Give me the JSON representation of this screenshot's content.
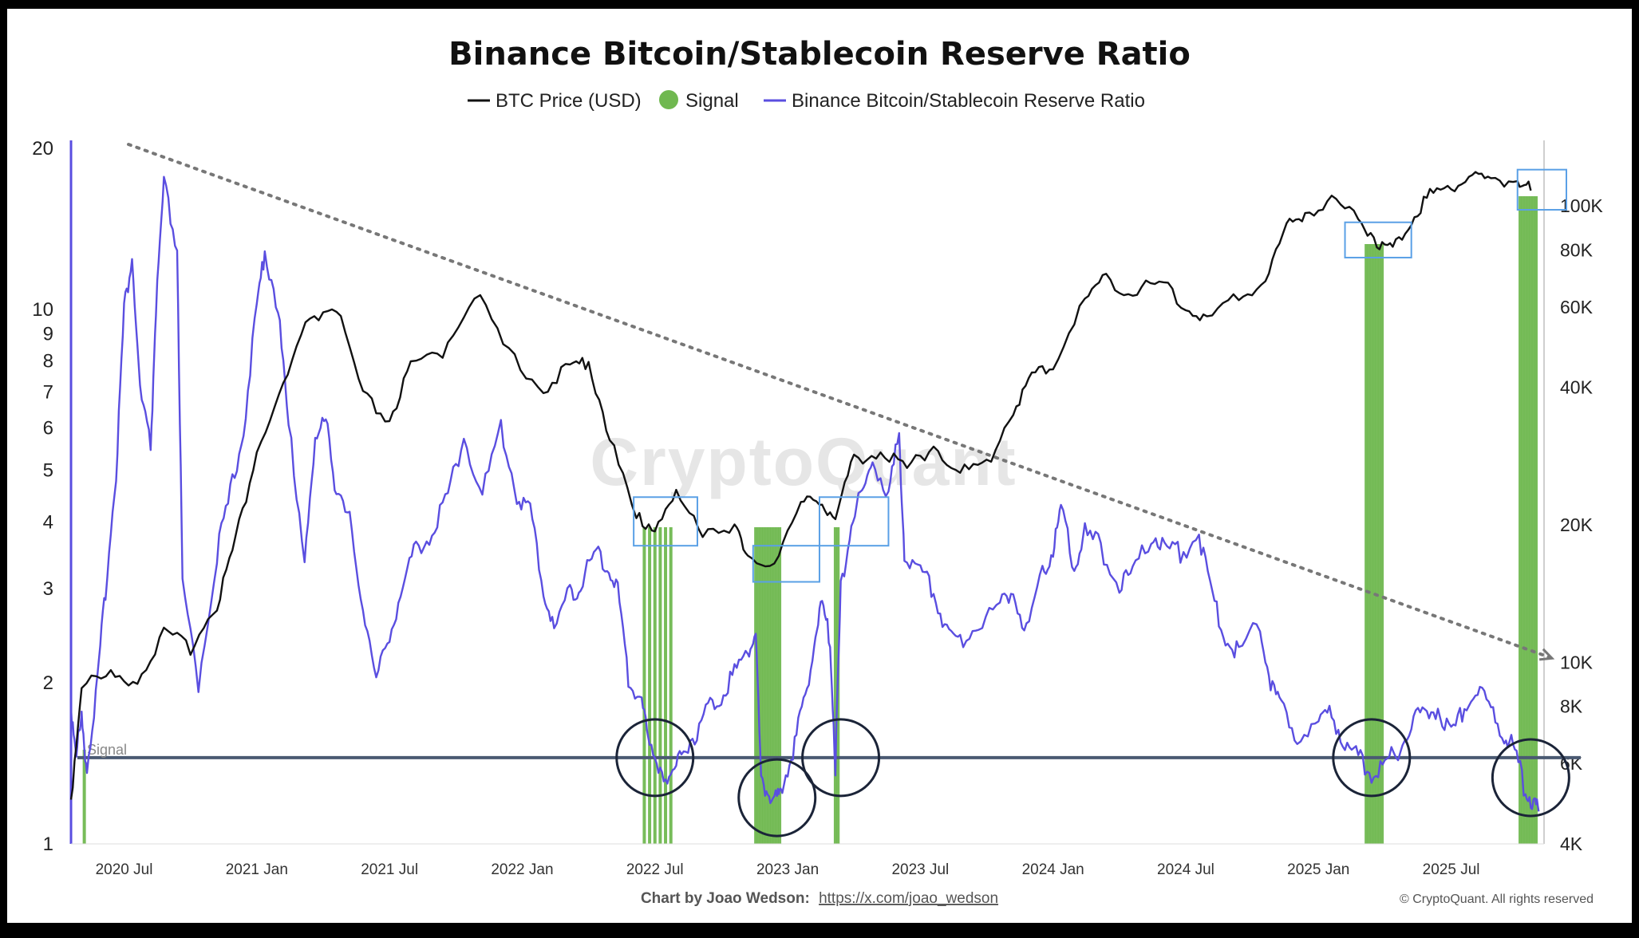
{
  "chart_data": {
    "type": "line",
    "title": "Binance Bitcoin/Stablecoin Reserve Ratio",
    "legend": [
      {
        "label": "BTC Price (USD)",
        "color": "#111111",
        "marker": "line"
      },
      {
        "label": "Signal",
        "color": "#70b850",
        "marker": "circle"
      },
      {
        "label": "Binance Bitcoin/Stablecoin Reserve Ratio",
        "color": "#5a4ee0",
        "marker": "line"
      }
    ],
    "x_axis": {
      "start": 2020.3,
      "end": 2025.85,
      "ticks": [
        {
          "label": "2020 Jul",
          "value": 2020.5
        },
        {
          "label": "2021 Jan",
          "value": 2021.0
        },
        {
          "label": "2021 Jul",
          "value": 2021.5
        },
        {
          "label": "2022 Jan",
          "value": 2022.0
        },
        {
          "label": "2022 Jul",
          "value": 2022.5
        },
        {
          "label": "2023 Jan",
          "value": 2023.0
        },
        {
          "label": "2023 Jul",
          "value": 2023.5
        },
        {
          "label": "2024 Jan",
          "value": 2024.0
        },
        {
          "label": "2024 Jul",
          "value": 2024.5
        },
        {
          "label": "2025 Jan",
          "value": 2025.0
        },
        {
          "label": "2025 Jul",
          "value": 2025.5
        }
      ]
    },
    "y_left": {
      "scale": "log",
      "min": 1,
      "max": 20,
      "ticks": [
        "20",
        "10",
        "9",
        "8",
        "7",
        "6",
        "5",
        "4",
        "3",
        "2",
        "1"
      ],
      "tick_values": [
        20,
        10,
        9,
        8,
        7,
        6,
        5,
        4,
        3,
        2,
        1
      ]
    },
    "y_right": {
      "scale": "log",
      "min": 4000,
      "max": 140000,
      "ticks": [
        "100K",
        "80K",
        "60K",
        "40K",
        "20K",
        "10K",
        "8K",
        "6K",
        "4K"
      ],
      "tick_values": [
        100000,
        80000,
        60000,
        40000,
        20000,
        10000,
        8000,
        6000,
        4000
      ]
    },
    "signal_threshold": {
      "value": 1.45,
      "label": "Signal"
    },
    "series": [
      {
        "name": "BTC Price (USD)",
        "axis": "right",
        "color": "#111111",
        "points": [
          [
            2020.3,
            5000
          ],
          [
            2020.34,
            9000
          ],
          [
            2020.45,
            9300
          ],
          [
            2020.55,
            9200
          ],
          [
            2020.65,
            11500
          ],
          [
            2020.75,
            10800
          ],
          [
            2020.85,
            13500
          ],
          [
            2020.92,
            18500
          ],
          [
            2021.0,
            29000
          ],
          [
            2021.1,
            40000
          ],
          [
            2021.2,
            57000
          ],
          [
            2021.3,
            60000
          ],
          [
            2021.4,
            38000
          ],
          [
            2021.5,
            34000
          ],
          [
            2021.58,
            44000
          ],
          [
            2021.7,
            48000
          ],
          [
            2021.82,
            65000
          ],
          [
            2021.95,
            47000
          ],
          [
            2022.08,
            40000
          ],
          [
            2022.18,
            44000
          ],
          [
            2022.25,
            46000
          ],
          [
            2022.33,
            31000
          ],
          [
            2022.43,
            20500
          ],
          [
            2022.5,
            20000
          ],
          [
            2022.58,
            23000
          ],
          [
            2022.68,
            19500
          ],
          [
            2022.8,
            20000
          ],
          [
            2022.85,
            16500
          ],
          [
            2022.95,
            16800
          ],
          [
            2023.05,
            22000
          ],
          [
            2023.12,
            23000
          ],
          [
            2023.18,
            20500
          ],
          [
            2023.25,
            28000
          ],
          [
            2023.35,
            29000
          ],
          [
            2023.45,
            26500
          ],
          [
            2023.55,
            30000
          ],
          [
            2023.65,
            26000
          ],
          [
            2023.75,
            27000
          ],
          [
            2023.85,
            36000
          ],
          [
            2023.92,
            42000
          ],
          [
            2024.0,
            45000
          ],
          [
            2024.12,
            62000
          ],
          [
            2024.2,
            70000
          ],
          [
            2024.3,
            64000
          ],
          [
            2024.4,
            68000
          ],
          [
            2024.5,
            60000
          ],
          [
            2024.58,
            56000
          ],
          [
            2024.7,
            63000
          ],
          [
            2024.8,
            69000
          ],
          [
            2024.88,
            90000
          ],
          [
            2024.95,
            97000
          ],
          [
            2025.05,
            102000
          ],
          [
            2025.15,
            95000
          ],
          [
            2025.22,
            84000
          ],
          [
            2025.28,
            80000
          ],
          [
            2025.35,
            94000
          ],
          [
            2025.42,
            106000
          ],
          [
            2025.5,
            110000
          ],
          [
            2025.58,
            118000
          ],
          [
            2025.65,
            112000
          ],
          [
            2025.75,
            115000
          ],
          [
            2025.8,
            108000
          ]
        ]
      },
      {
        "name": "Binance Bitcoin/Stablecoin Reserve Ratio",
        "axis": "left",
        "color": "#5a4ee0",
        "points": [
          [
            2020.3,
            1.8
          ],
          [
            2020.32,
            1.5
          ],
          [
            2020.34,
            1.7
          ],
          [
            2020.36,
            1.4
          ],
          [
            2020.4,
            2.0
          ],
          [
            2020.43,
            3.0
          ],
          [
            2020.47,
            5.0
          ],
          [
            2020.5,
            10.0
          ],
          [
            2020.53,
            12.5
          ],
          [
            2020.56,
            7.0
          ],
          [
            2020.6,
            5.5
          ],
          [
            2020.62,
            10.0
          ],
          [
            2020.65,
            17.0
          ],
          [
            2020.7,
            13.0
          ],
          [
            2020.72,
            3.0
          ],
          [
            2020.78,
            2.0
          ],
          [
            2020.85,
            3.5
          ],
          [
            2020.9,
            4.5
          ],
          [
            2020.95,
            6.0
          ],
          [
            2021.0,
            10.0
          ],
          [
            2021.03,
            13.0
          ],
          [
            2021.08,
            10.0
          ],
          [
            2021.12,
            6.0
          ],
          [
            2021.18,
            3.5
          ],
          [
            2021.22,
            5.5
          ],
          [
            2021.26,
            6.5
          ],
          [
            2021.3,
            4.5
          ],
          [
            2021.35,
            4.0
          ],
          [
            2021.4,
            2.8
          ],
          [
            2021.45,
            2.0
          ],
          [
            2021.5,
            2.5
          ],
          [
            2021.55,
            3.0
          ],
          [
            2021.6,
            3.6
          ],
          [
            2021.66,
            3.8
          ],
          [
            2021.72,
            4.5
          ],
          [
            2021.78,
            5.8
          ],
          [
            2021.85,
            4.5
          ],
          [
            2021.92,
            6.0
          ],
          [
            2021.98,
            4.5
          ],
          [
            2022.03,
            4.2
          ],
          [
            2022.08,
            3.0
          ],
          [
            2022.12,
            2.5
          ],
          [
            2022.18,
            3.0
          ],
          [
            2022.22,
            3.0
          ],
          [
            2022.27,
            3.5
          ],
          [
            2022.32,
            3.3
          ],
          [
            2022.36,
            3.0
          ],
          [
            2022.4,
            2.0
          ],
          [
            2022.45,
            1.9
          ],
          [
            2022.48,
            1.5
          ],
          [
            2022.52,
            1.4
          ],
          [
            2022.56,
            1.3
          ],
          [
            2022.6,
            1.5
          ],
          [
            2022.65,
            1.6
          ],
          [
            2022.7,
            1.8
          ],
          [
            2022.75,
            1.9
          ],
          [
            2022.8,
            2.1
          ],
          [
            2022.85,
            2.3
          ],
          [
            2022.88,
            2.5
          ],
          [
            2022.9,
            1.3
          ],
          [
            2022.93,
            1.25
          ],
          [
            2022.96,
            1.2
          ],
          [
            2022.98,
            1.3
          ],
          [
            2023.02,
            1.5
          ],
          [
            2023.06,
            1.8
          ],
          [
            2023.1,
            2.4
          ],
          [
            2023.13,
            2.8
          ],
          [
            2023.16,
            2.4
          ],
          [
            2023.18,
            1.4
          ],
          [
            2023.2,
            3.0
          ],
          [
            2023.24,
            4.0
          ],
          [
            2023.28,
            4.5
          ],
          [
            2023.32,
            5.2
          ],
          [
            2023.38,
            4.5
          ],
          [
            2023.42,
            5.8
          ],
          [
            2023.44,
            3.5
          ],
          [
            2023.5,
            3.2
          ],
          [
            2023.55,
            3.0
          ],
          [
            2023.6,
            2.5
          ],
          [
            2023.65,
            2.4
          ],
          [
            2023.72,
            2.6
          ],
          [
            2023.8,
            2.8
          ],
          [
            2023.85,
            3.0
          ],
          [
            2023.9,
            2.5
          ],
          [
            2023.96,
            3.2
          ],
          [
            2024.0,
            3.6
          ],
          [
            2024.03,
            4.2
          ],
          [
            2024.08,
            3.3
          ],
          [
            2024.12,
            3.8
          ],
          [
            2024.18,
            3.6
          ],
          [
            2024.25,
            3.0
          ],
          [
            2024.3,
            3.2
          ],
          [
            2024.37,
            3.8
          ],
          [
            2024.42,
            3.6
          ],
          [
            2024.48,
            3.5
          ],
          [
            2024.55,
            3.8
          ],
          [
            2024.6,
            2.9
          ],
          [
            2024.65,
            2.4
          ],
          [
            2024.7,
            2.3
          ],
          [
            2024.78,
            2.6
          ],
          [
            2024.82,
            2.0
          ],
          [
            2024.86,
            1.8
          ],
          [
            2024.92,
            1.6
          ],
          [
            2025.0,
            1.65
          ],
          [
            2025.05,
            1.75
          ],
          [
            2025.1,
            1.55
          ],
          [
            2025.15,
            1.45
          ],
          [
            2025.2,
            1.35
          ],
          [
            2025.25,
            1.4
          ],
          [
            2025.3,
            1.5
          ],
          [
            2025.35,
            1.7
          ],
          [
            2025.4,
            1.75
          ],
          [
            2025.45,
            1.8
          ],
          [
            2025.5,
            1.6
          ],
          [
            2025.55,
            1.8
          ],
          [
            2025.6,
            1.95
          ],
          [
            2025.65,
            1.8
          ],
          [
            2025.7,
            1.6
          ],
          [
            2025.74,
            1.5
          ],
          [
            2025.78,
            1.25
          ],
          [
            2025.81,
            1.2
          ],
          [
            2025.83,
            1.15
          ]
        ]
      }
    ],
    "signal_bars": [
      {
        "x": 2020.35
      },
      {
        "x": 2022.46
      },
      {
        "x": 2022.48
      },
      {
        "x": 2022.5
      },
      {
        "x": 2022.52
      },
      {
        "x": 2022.54
      },
      {
        "x": 2022.56
      },
      {
        "x": 2022.88
      },
      {
        "x": 2022.89
      },
      {
        "x": 2022.9
      },
      {
        "x": 2022.91
      },
      {
        "x": 2022.92
      },
      {
        "x": 2022.93
      },
      {
        "x": 2022.94
      },
      {
        "x": 2022.95
      },
      {
        "x": 2022.96
      },
      {
        "x": 2022.97
      },
      {
        "x": 2023.18
      },
      {
        "x": 2023.19
      },
      {
        "x": 2025.18
      },
      {
        "x": 2025.19
      },
      {
        "x": 2025.2
      },
      {
        "x": 2025.21
      },
      {
        "x": 2025.22
      },
      {
        "x": 2025.23
      },
      {
        "x": 2025.24
      },
      {
        "x": 2025.76
      },
      {
        "x": 2025.77
      },
      {
        "x": 2025.78
      },
      {
        "x": 2025.79
      },
      {
        "x": 2025.8
      },
      {
        "x": 2025.81
      },
      {
        "x": 2025.82
      }
    ],
    "trend_arrow": {
      "from": [
        2020.5,
        150000
      ],
      "to": [
        2025.82,
        10000
      ],
      "axis": "right"
    },
    "annotation_circles": [
      {
        "x": 2022.5,
        "y": 1.45,
        "axis": "left"
      },
      {
        "x": 2022.96,
        "y": 1.22,
        "axis": "left"
      },
      {
        "x": 2023.2,
        "y": 1.45,
        "axis": "left"
      },
      {
        "x": 2025.2,
        "y": 1.45,
        "axis": "left"
      },
      {
        "x": 2025.8,
        "y": 1.33,
        "axis": "left"
      }
    ],
    "annotation_boxes": [
      {
        "x0": 2022.42,
        "x1": 2022.66,
        "y0": 18000,
        "y1": 23000,
        "axis": "right"
      },
      {
        "x0": 2022.87,
        "x1": 2023.12,
        "y0": 15000,
        "y1": 18000,
        "axis": "right"
      },
      {
        "x0": 2023.12,
        "x1": 2023.38,
        "y0": 18000,
        "y1": 23000,
        "axis": "right"
      },
      {
        "x0": 2025.1,
        "x1": 2025.35,
        "y0": 77000,
        "y1": 92000,
        "axis": "right"
      },
      {
        "x0": 2025.75,
        "x1": 2026.0,
        "y0": 98000,
        "y1": 120000,
        "axis": "right"
      }
    ],
    "watermark": "CryptoQuant",
    "credit_prefix": "Chart by Joao Wedson:",
    "credit_link": "https://x.com/joao_wedson",
    "copyright": "© CryptoQuant. All rights reserved"
  }
}
